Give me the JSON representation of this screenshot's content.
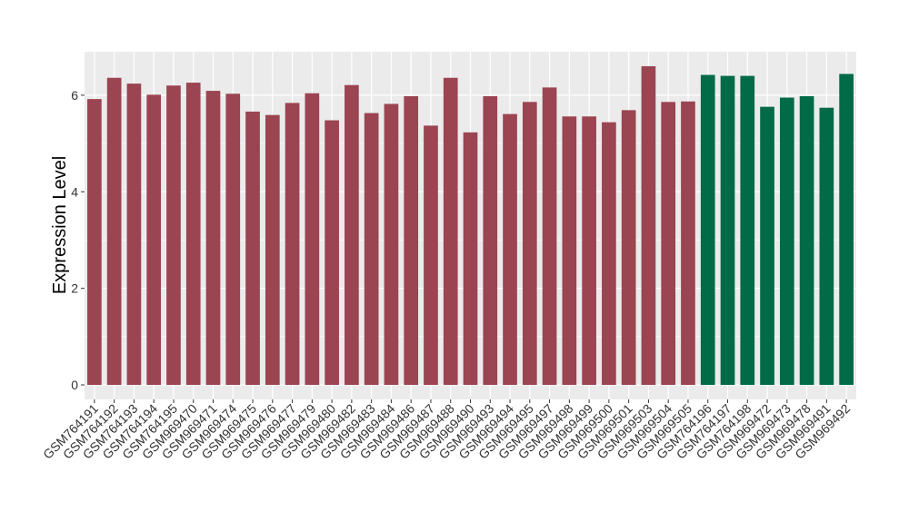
{
  "chart_data": {
    "type": "bar",
    "title": "",
    "xlabel": "",
    "ylabel": "Expression Level",
    "ylim": [
      -0.3,
      6.9
    ],
    "yticks": [
      0,
      2,
      4,
      6
    ],
    "grid": true,
    "legend": "none",
    "colors": {
      "group1": "#9b4452",
      "group2": "#016a46",
      "panel_bg": "#ebebeb",
      "grid": "#ffffff"
    },
    "categories": [
      "GSM764191",
      "GSM764192",
      "GSM764193",
      "GSM764194",
      "GSM764195",
      "GSM969470",
      "GSM969471",
      "GSM969474",
      "GSM969475",
      "GSM969476",
      "GSM969477",
      "GSM969479",
      "GSM969480",
      "GSM969482",
      "GSM969483",
      "GSM969484",
      "GSM969486",
      "GSM969487",
      "GSM969488",
      "GSM969490",
      "GSM969493",
      "GSM969494",
      "GSM969495",
      "GSM969497",
      "GSM969498",
      "GSM969499",
      "GSM969500",
      "GSM969501",
      "GSM969503",
      "GSM969504",
      "GSM969505",
      "GSM764196",
      "GSM764197",
      "GSM764198",
      "GSM969472",
      "GSM969473",
      "GSM969478",
      "GSM969491",
      "GSM969492"
    ],
    "values": [
      5.92,
      6.36,
      6.24,
      6.01,
      6.2,
      6.26,
      6.09,
      6.03,
      5.66,
      5.59,
      5.84,
      6.04,
      5.48,
      6.21,
      5.63,
      5.82,
      5.98,
      5.37,
      6.36,
      5.23,
      5.98,
      5.61,
      5.86,
      6.16,
      5.56,
      5.56,
      5.44,
      5.69,
      6.6,
      5.86,
      5.87,
      6.42,
      6.4,
      6.4,
      5.76,
      5.95,
      5.98,
      5.74,
      6.44
    ],
    "groups": [
      1,
      1,
      1,
      1,
      1,
      1,
      1,
      1,
      1,
      1,
      1,
      1,
      1,
      1,
      1,
      1,
      1,
      1,
      1,
      1,
      1,
      1,
      1,
      1,
      1,
      1,
      1,
      1,
      1,
      1,
      1,
      2,
      2,
      2,
      2,
      2,
      2,
      2,
      2
    ]
  }
}
